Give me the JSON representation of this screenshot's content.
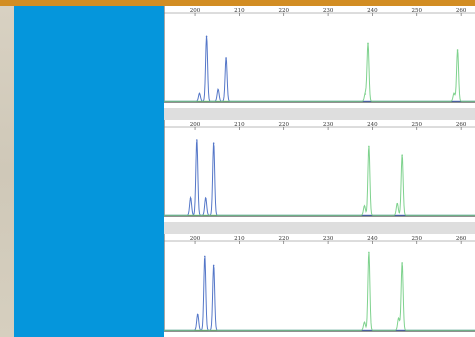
{
  "colors": {
    "top_bar": "#d28d23",
    "blue_panel": "#0596dc",
    "blue_trace": "#5577c8",
    "green_trace": "#7fd28e",
    "axis": "#222222",
    "separator": "#dedede"
  },
  "chart_data": [
    {
      "type": "line",
      "xlim": [
        193,
        262
      ],
      "xticks": [
        "200",
        "210",
        "220",
        "230",
        "240",
        "250",
        "260"
      ],
      "ylim": [
        0,
        1
      ],
      "grid": false,
      "series": [
        {
          "color": "blue",
          "peaks": [
            {
              "x": 201.0,
              "h": 0.1
            },
            {
              "x": 202.6,
              "h": 0.82
            },
            {
              "x": 205.2,
              "h": 0.15
            },
            {
              "x": 207.0,
              "h": 0.55
            }
          ]
        },
        {
          "color": "green",
          "peaks": [
            {
              "x": 239.0,
              "h": 0.73
            },
            {
              "x": 238.4,
              "h": 0.1
            },
            {
              "x": 259.2,
              "h": 0.65
            },
            {
              "x": 258.4,
              "h": 0.1
            }
          ]
        }
      ]
    },
    {
      "type": "line",
      "xlim": [
        193,
        262
      ],
      "xticks": [
        "200",
        "210",
        "220",
        "230",
        "240",
        "250",
        "260"
      ],
      "ylim": [
        0,
        1
      ],
      "grid": false,
      "series": [
        {
          "color": "blue",
          "peaks": [
            {
              "x": 199.0,
              "h": 0.22
            },
            {
              "x": 200.4,
              "h": 0.95
            },
            {
              "x": 202.4,
              "h": 0.22
            },
            {
              "x": 204.2,
              "h": 0.91
            }
          ]
        },
        {
          "color": "green",
          "peaks": [
            {
              "x": 238.2,
              "h": 0.12
            },
            {
              "x": 239.2,
              "h": 0.87
            },
            {
              "x": 245.6,
              "h": 0.15
            },
            {
              "x": 246.7,
              "h": 0.76
            }
          ]
        }
      ]
    },
    {
      "type": "line",
      "xlim": [
        193,
        262
      ],
      "xticks": [
        "200",
        "210",
        "220",
        "230",
        "240",
        "250",
        "260"
      ],
      "ylim": [
        0,
        1
      ],
      "grid": false,
      "series": [
        {
          "color": "blue",
          "peaks": [
            {
              "x": 200.6,
              "h": 0.2
            },
            {
              "x": 202.2,
              "h": 0.92
            },
            {
              "x": 204.2,
              "h": 0.81
            }
          ]
        },
        {
          "color": "green",
          "peaks": [
            {
              "x": 238.2,
              "h": 0.1
            },
            {
              "x": 239.2,
              "h": 0.97
            },
            {
              "x": 245.9,
              "h": 0.15
            },
            {
              "x": 246.7,
              "h": 0.84
            }
          ]
        }
      ]
    }
  ]
}
